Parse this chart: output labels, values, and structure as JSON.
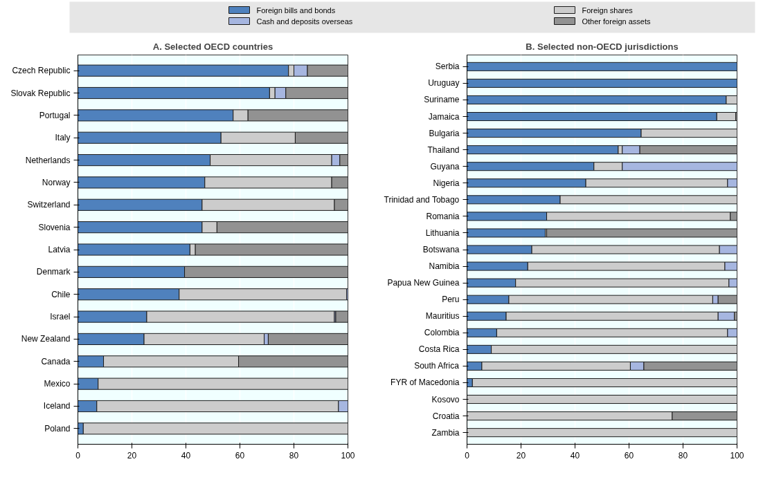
{
  "chart_data": [
    {
      "type": "bar",
      "orientation": "horizontal",
      "stacked": true,
      "title": "A. Selected OECD countries",
      "legend": "top",
      "grid": "x",
      "categories": [
        "Czech Republic",
        "Slovak Republic",
        "Portugal",
        "Italy",
        "Netherlands",
        "Norway",
        "Switzerland",
        "Slovenia",
        "Latvia",
        "Denmark",
        "Chile",
        "Israel",
        "New Zealand",
        "Canada",
        "Mexico",
        "Iceland",
        "Poland"
      ],
      "xlim": [
        0,
        100
      ],
      "xticks": [
        0,
        20,
        40,
        60,
        80,
        100
      ],
      "series": [
        {
          "name": "Foreign bills and bonds",
          "color": "#4f81bd",
          "values": [
            78,
            71,
            57.5,
            53,
            49,
            47,
            46,
            46,
            41.5,
            39.5,
            37.5,
            25.5,
            24.5,
            9.5,
            7.5,
            7,
            2
          ]
        },
        {
          "name": "Foreign shares",
          "color": "#cccccc",
          "values": [
            2,
            2,
            5.5,
            27.5,
            45,
            47,
            49,
            5.5,
            2,
            0,
            62,
            69.5,
            44.5,
            50,
            92.5,
            89.5,
            98
          ]
        },
        {
          "name": "Cash and deposits overseas",
          "color": "#a6b6e0",
          "values": [
            5,
            4,
            0,
            0,
            3,
            0,
            0,
            0,
            0,
            0,
            0.5,
            0.5,
            1.5,
            0,
            0,
            3.5,
            0
          ]
        },
        {
          "name": "Other foreign assets",
          "color": "#929292",
          "values": [
            15,
            23,
            37,
            19.5,
            3,
            6,
            5,
            48.5,
            56.5,
            60.5,
            0,
            4.5,
            29.5,
            40.5,
            0,
            0,
            0
          ]
        }
      ]
    },
    {
      "type": "bar",
      "orientation": "horizontal",
      "stacked": true,
      "title": "B. Selected non-OECD jurisdictions",
      "grid": "x",
      "categories": [
        "Serbia",
        "Uruguay",
        "Suriname",
        "Jamaica",
        "Bulgaria",
        "Thailand",
        "Guyana",
        "Nigeria",
        "Trinidad and Tobago",
        "Romania",
        "Lithuania",
        "Botswana",
        "Namibia",
        "Papua New Guinea",
        "Peru",
        "Mauritius",
        "Colombia",
        "Costa Rica",
        "South Africa",
        "FYR of Macedonia",
        "Kosovo",
        "Croatia",
        "Zambia"
      ],
      "xlim": [
        0,
        100
      ],
      "xticks": [
        0,
        20,
        40,
        60,
        80,
        100
      ],
      "series": [
        {
          "color": "#4f81bd",
          "values": [
            100,
            100,
            96,
            92.5,
            64.5,
            56,
            47,
            44,
            34.5,
            29.5,
            29,
            24,
            22.5,
            18,
            15.5,
            14.5,
            11,
            9,
            5.5,
            2,
            0,
            0,
            0
          ]
        },
        {
          "color": "#cccccc",
          "values": [
            0,
            0,
            4,
            7,
            35.5,
            1.5,
            10.5,
            52.5,
            65.5,
            68,
            0.5,
            69.5,
            73,
            79,
            75.5,
            78.5,
            85.5,
            91,
            55,
            98,
            100,
            76,
            100
          ]
        },
        {
          "color": "#a6b6e0",
          "values": [
            0,
            0,
            0,
            0,
            0,
            6.5,
            42.5,
            3.5,
            0,
            0,
            0,
            6.5,
            4.5,
            3,
            2,
            6,
            3.5,
            0,
            5,
            0,
            0,
            0,
            0
          ]
        },
        {
          "color": "#929292",
          "values": [
            0,
            0,
            0,
            0.5,
            0,
            36,
            0,
            0,
            0,
            2.5,
            70.5,
            0,
            0,
            0,
            7,
            1,
            0,
            0,
            34.5,
            0,
            0,
            24,
            0
          ]
        }
      ]
    }
  ]
}
